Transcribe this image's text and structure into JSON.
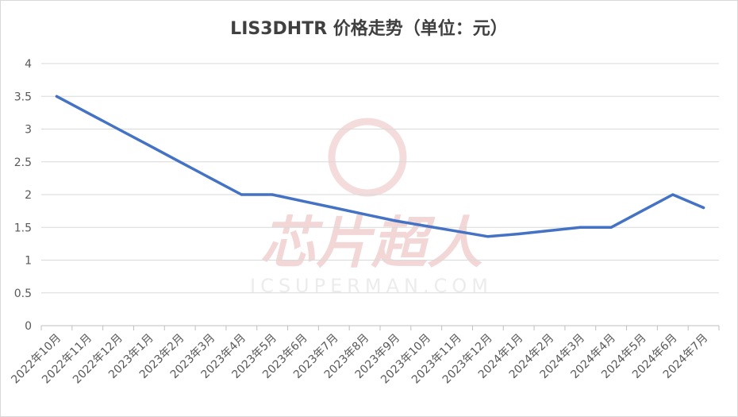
{
  "chart_data": {
    "type": "line",
    "title": "LIS3DHTR 价格走势（单位：元）",
    "xlabel": "",
    "ylabel": "",
    "ylim": [
      0,
      4
    ],
    "yticks": [
      "0",
      "0.5",
      "1",
      "1.5",
      "2",
      "2.5",
      "3",
      "3.5",
      "4"
    ],
    "grid": true,
    "legend": "none",
    "categories": [
      "2022年10月",
      "2022年11月",
      "2022年12月",
      "2023年1月",
      "2023年2月",
      "2023年3月",
      "2023年4月",
      "2023年5月",
      "2023年6月",
      "2023年7月",
      "2023年8月",
      "2023年9月",
      "2023年10月",
      "2023年11月",
      "2023年12月",
      "2024年1月",
      "2024年2月",
      "2024年3月",
      "2024年4月",
      "2024年5月",
      "2024年6月",
      "2024年7月"
    ],
    "series": [
      {
        "values": [
          3.5,
          3.25,
          3.0,
          2.75,
          2.5,
          2.25,
          2.0,
          2.0,
          1.9,
          1.8,
          1.7,
          1.6,
          1.52,
          1.44,
          1.36,
          1.4,
          1.45,
          1.5,
          1.5,
          1.75,
          2.0,
          1.8
        ]
      }
    ],
    "color": "#4472c4"
  },
  "watermark": {
    "main": "芯片超人",
    "sub": "ICSUPERMAN.COM"
  }
}
